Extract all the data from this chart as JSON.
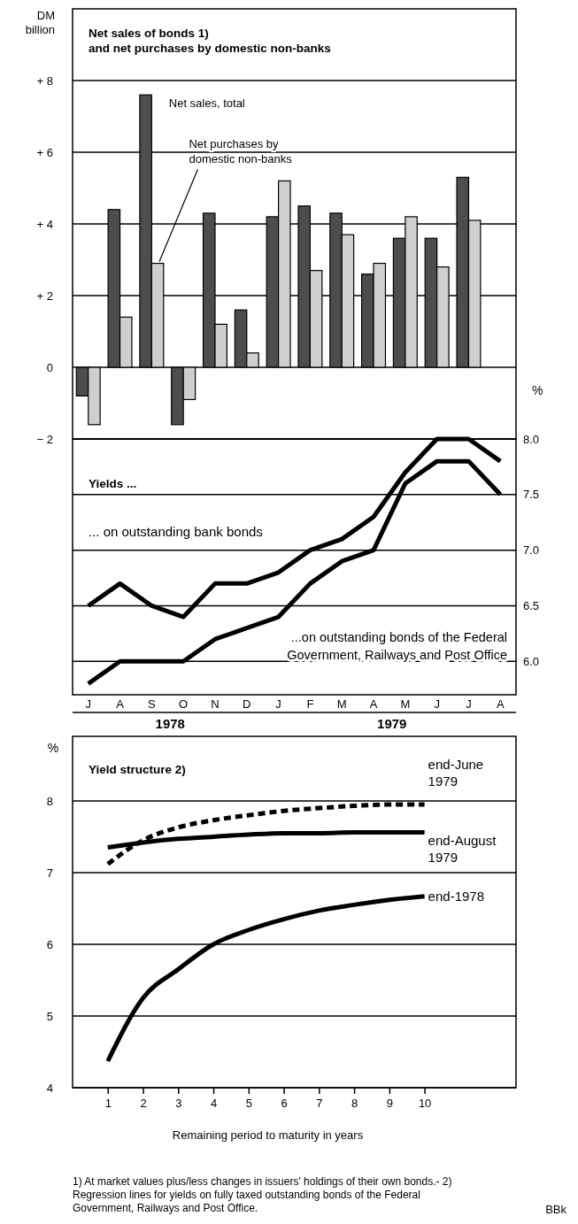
{
  "chart_data": [
    {
      "type": "bar",
      "title": "Net sales of bonds  1)\nand net purchases by domestic non-banks",
      "ylabel": "DM\nbillion",
      "categories": [
        null,
        null,
        null,
        null,
        null,
        null,
        null,
        null,
        null,
        null,
        null,
        null,
        null,
        null
      ],
      "series": [
        {
          "name": "Net sales, total",
          "color": "#4d4d4d",
          "values": [
            -0.8,
            4.4,
            7.6,
            -1.6,
            4.3,
            1.6,
            4.2,
            4.5,
            4.3,
            2.6,
            3.6,
            3.6,
            5.3,
            null
          ]
        },
        {
          "name": "Net purchases by\ndomestic non-banks",
          "color": "#cfcfcf",
          "values": [
            -1.6,
            1.4,
            2.9,
            -0.9,
            1.2,
            0.4,
            5.2,
            2.7,
            3.7,
            2.9,
            4.2,
            2.8,
            4.1,
            null
          ]
        }
      ],
      "ylim": [
        -2,
        10
      ],
      "yticks": [
        {
          "value": -2,
          "label": "− 2"
        },
        0,
        {
          "value": 2,
          "label": "+ 2"
        },
        {
          "value": 4,
          "label": "+ 4"
        },
        {
          "value": 6,
          "label": "+ 6"
        },
        {
          "value": 8,
          "label": "+ 8"
        }
      ],
      "grid": "y",
      "legend": false
    },
    {
      "type": "line",
      "title": "Yields ...",
      "y2label": "%",
      "categories": [
        "J",
        "A",
        "S",
        "O",
        "N",
        "D",
        "J",
        "F",
        "M",
        "A",
        "M",
        "J",
        "J",
        "A"
      ],
      "series": [
        {
          "name": "... on outstanding bank bonds",
          "color": "#000000",
          "axis": "y2",
          "values": [
            6.5,
            6.7,
            6.5,
            6.4,
            6.7,
            6.7,
            6.8,
            7.0,
            7.1,
            7.3,
            7.7,
            8.0,
            8.0,
            7.8
          ]
        },
        {
          "name": "...on outstanding bonds of the Federal\nGovernment, Railways and Post Office",
          "color": "#000000",
          "axis": "y2",
          "values": [
            5.8,
            6.0,
            6.0,
            6.0,
            6.2,
            6.3,
            6.4,
            6.7,
            6.9,
            7.0,
            7.6,
            7.8,
            7.8,
            7.5
          ]
        }
      ],
      "y2lim": [
        5.7,
        8.0
      ],
      "y2ticks": [
        {
          "value": 6,
          "label": "6.0"
        },
        {
          "value": 6.5,
          "label": "6.5"
        },
        {
          "value": 7,
          "label": "7.0"
        },
        {
          "value": 7.5,
          "label": "7.5"
        },
        {
          "value": 8,
          "label": "8.0"
        }
      ],
      "grid": "y",
      "legend": false,
      "annotations": [
        "1978",
        "1979"
      ]
    },
    {
      "type": "line",
      "title": "Yield structure  2)",
      "ylabel": "%",
      "xlabel": "Remaining period to maturity in years",
      "x": [
        1,
        2,
        3,
        4,
        5,
        6,
        7,
        8,
        9,
        10
      ],
      "series": [
        {
          "name": "end-June\n1979",
          "color": "#000000",
          "line_style": "dashed",
          "values": [
            7.12,
            7.45,
            7.63,
            7.73,
            7.8,
            7.86,
            7.9,
            7.93,
            7.95,
            7.95
          ]
        },
        {
          "name": "end-August\n1979",
          "color": "#000000",
          "values": [
            7.35,
            7.42,
            7.47,
            7.5,
            7.53,
            7.55,
            7.55,
            7.56,
            7.56,
            7.56
          ]
        },
        {
          "name": "end-1978",
          "color": "#000000",
          "values": [
            4.37,
            5.25,
            5.65,
            6.0,
            6.2,
            6.35,
            6.47,
            6.55,
            6.62,
            6.67
          ]
        }
      ],
      "xlim": [
        0,
        12.6
      ],
      "xticks": [
        1,
        2,
        3,
        4,
        5,
        6,
        7,
        8,
        9,
        10
      ],
      "ylim": [
        4,
        8.9
      ],
      "yticks": [
        4,
        5,
        6,
        7,
        8
      ],
      "grid": "y",
      "legend": false,
      "annotations": [
        "1) At market values plus/less changes in issuers' holdings of their own bonds.- 2) Regression lines for yields on fully taxed outstanding bonds of the Federal Government, Railways and Post Office.",
        "BBk"
      ]
    }
  ]
}
